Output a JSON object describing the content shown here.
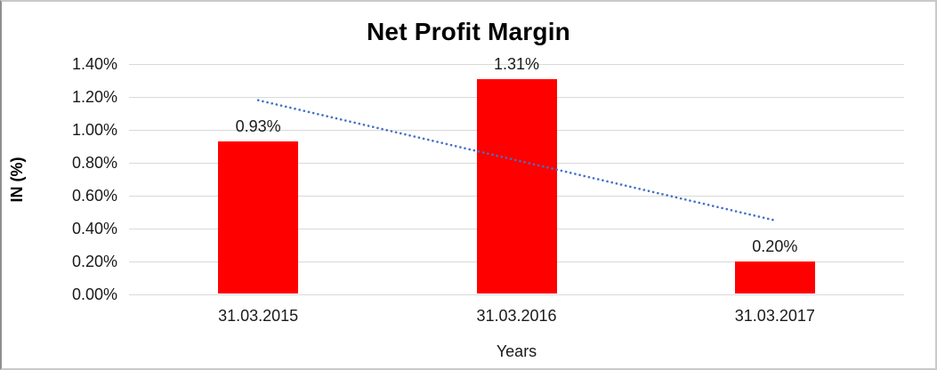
{
  "chart_data": {
    "type": "bar",
    "title": "Net Profit Margin",
    "xlabel": "Years",
    "ylabel": "IN (%)",
    "categories": [
      "31.03.2015",
      "31.03.2016",
      "31.03.2017"
    ],
    "values": [
      0.93,
      1.31,
      0.2
    ],
    "data_labels": [
      "0.93%",
      "1.31%",
      "0.20%"
    ],
    "ylim": [
      0,
      1.4
    ],
    "ytick_step": 0.2,
    "ytick_labels": [
      "0.00%",
      "0.20%",
      "0.40%",
      "0.60%",
      "0.80%",
      "1.00%",
      "1.20%",
      "1.40%"
    ],
    "grid": true,
    "legend": "none",
    "bar_color": "#ff0000",
    "gridline_color": "#d9d9d9",
    "text_color": "#1a1a1a",
    "trendline": {
      "type": "linear",
      "style": "dotted",
      "color": "#4472c4",
      "start_value": 1.18,
      "end_value": 0.45
    }
  }
}
